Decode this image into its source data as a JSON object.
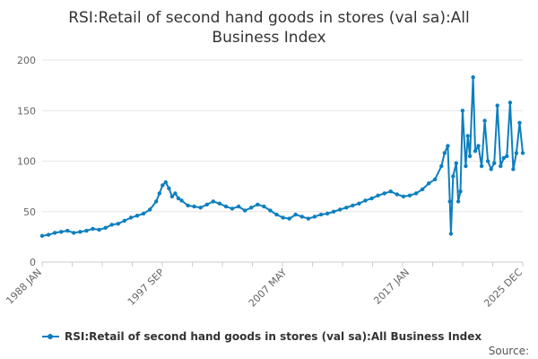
{
  "chart_data": {
    "type": "line",
    "title": "RSI:Retail of second hand goods in stores (val sa):All Business Index",
    "title_lines": [
      "RSI:Retail of second hand goods in stores (val sa):All",
      "Business Index"
    ],
    "xlabel": "",
    "ylabel": "",
    "ylim": [
      0,
      200
    ],
    "yticks": [
      0,
      50,
      100,
      150,
      200
    ],
    "xlim": [
      "1988-01",
      "2025-12"
    ],
    "xtick_labels": [
      {
        "date": "1988-01",
        "label": "1988 JAN"
      },
      {
        "date": "1997-09",
        "label": "1997 SEP"
      },
      {
        "date": "2007-05",
        "label": "2007 MAY"
      },
      {
        "date": "2017-01",
        "label": "2017 JAN"
      },
      {
        "date": "2025-12",
        "label": "2025 DEC"
      }
    ],
    "grid": true,
    "legend_position": "bottom",
    "series": [
      {
        "name": "RSI:Retail of second hand goods in stores (val sa):All Business Index",
        "color": "#0d7fbf",
        "points": [
          [
            "1988-01",
            26
          ],
          [
            "1988-07",
            27
          ],
          [
            "1989-01",
            29
          ],
          [
            "1989-07",
            30
          ],
          [
            "1990-01",
            31
          ],
          [
            "1990-07",
            29
          ],
          [
            "1991-01",
            30
          ],
          [
            "1991-07",
            31
          ],
          [
            "1992-01",
            33
          ],
          [
            "1992-07",
            32
          ],
          [
            "1993-01",
            34
          ],
          [
            "1993-07",
            37
          ],
          [
            "1994-01",
            38
          ],
          [
            "1994-07",
            41
          ],
          [
            "1995-01",
            44
          ],
          [
            "1995-07",
            46
          ],
          [
            "1996-01",
            48
          ],
          [
            "1996-07",
            52
          ],
          [
            "1997-01",
            60
          ],
          [
            "1997-04",
            68
          ],
          [
            "1997-07",
            76
          ],
          [
            "1997-10",
            79
          ],
          [
            "1998-01",
            73
          ],
          [
            "1998-04",
            65
          ],
          [
            "1998-07",
            68
          ],
          [
            "1998-10",
            63
          ],
          [
            "1999-01",
            61
          ],
          [
            "1999-07",
            56
          ],
          [
            "2000-01",
            55
          ],
          [
            "2000-07",
            54
          ],
          [
            "2001-01",
            57
          ],
          [
            "2001-07",
            60
          ],
          [
            "2002-01",
            58
          ],
          [
            "2002-07",
            55
          ],
          [
            "2003-01",
            53
          ],
          [
            "2003-07",
            55
          ],
          [
            "2004-01",
            51
          ],
          [
            "2004-07",
            54
          ],
          [
            "2005-01",
            57
          ],
          [
            "2005-07",
            55
          ],
          [
            "2006-01",
            51
          ],
          [
            "2006-07",
            47
          ],
          [
            "2007-01",
            44
          ],
          [
            "2007-07",
            43
          ],
          [
            "2008-01",
            47
          ],
          [
            "2008-07",
            45
          ],
          [
            "2009-01",
            43
          ],
          [
            "2009-07",
            45
          ],
          [
            "2010-01",
            47
          ],
          [
            "2010-07",
            48
          ],
          [
            "2011-01",
            50
          ],
          [
            "2011-07",
            52
          ],
          [
            "2012-01",
            54
          ],
          [
            "2012-07",
            56
          ],
          [
            "2013-01",
            58
          ],
          [
            "2013-07",
            61
          ],
          [
            "2014-01",
            63
          ],
          [
            "2014-07",
            66
          ],
          [
            "2015-01",
            68
          ],
          [
            "2015-07",
            70
          ],
          [
            "2016-01",
            67
          ],
          [
            "2016-07",
            65
          ],
          [
            "2017-01",
            66
          ],
          [
            "2017-07",
            68
          ],
          [
            "2018-01",
            72
          ],
          [
            "2018-07",
            78
          ],
          [
            "2019-01",
            82
          ],
          [
            "2019-07",
            95
          ],
          [
            "2019-10",
            108
          ],
          [
            "2020-01",
            115
          ],
          [
            "2020-03",
            60
          ],
          [
            "2020-04",
            28
          ],
          [
            "2020-06",
            85
          ],
          [
            "2020-09",
            98
          ],
          [
            "2020-11",
            60
          ],
          [
            "2021-01",
            70
          ],
          [
            "2021-03",
            150
          ],
          [
            "2021-06",
            95
          ],
          [
            "2021-08",
            125
          ],
          [
            "2021-10",
            105
          ],
          [
            "2022-01",
            183
          ],
          [
            "2022-03",
            110
          ],
          [
            "2022-06",
            115
          ],
          [
            "2022-09",
            95
          ],
          [
            "2022-12",
            140
          ],
          [
            "2023-03",
            100
          ],
          [
            "2023-06",
            92
          ],
          [
            "2023-09",
            98
          ],
          [
            "2023-12",
            155
          ],
          [
            "2024-03",
            95
          ],
          [
            "2024-06",
            103
          ],
          [
            "2024-09",
            105
          ],
          [
            "2024-12",
            158
          ],
          [
            "2025-03",
            92
          ],
          [
            "2025-06",
            108
          ],
          [
            "2025-09",
            138
          ],
          [
            "2025-12",
            108
          ]
        ]
      }
    ]
  },
  "source_label": "Source:"
}
